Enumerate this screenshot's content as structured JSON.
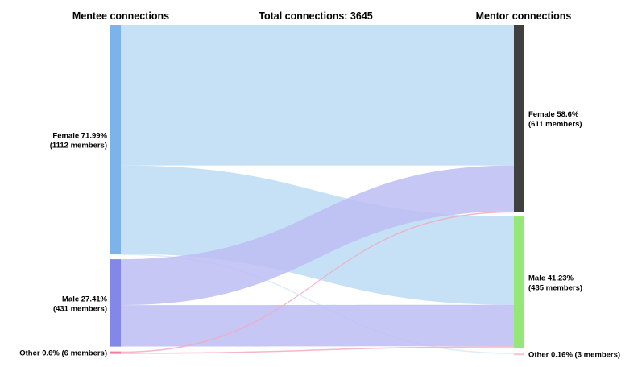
{
  "chart_data": {
    "type": "sankey",
    "title": "Total connections: 3645",
    "left_header": "Mentee connections",
    "right_header": "Mentor connections",
    "left_nodes": [
      {
        "id": "mentee-female",
        "line1": "Female 71.99%",
        "line2": "(1112 members)",
        "color": "#7eb3ea",
        "share": 71.99
      },
      {
        "id": "mentee-male",
        "line1": "Male 27.41%",
        "line2": "(431 members)",
        "color": "#8287e8",
        "share": 27.41
      },
      {
        "id": "mentee-other",
        "line1": "Other 0.6% (6 members)",
        "line2": "",
        "color": "#f07ca4",
        "share": 0.6
      }
    ],
    "right_nodes": [
      {
        "id": "mentor-female",
        "line1": "Female 58.6%",
        "line2": "(611 members)",
        "color": "#404040",
        "share": 58.6
      },
      {
        "id": "mentor-male",
        "line1": "Male 41.23%",
        "line2": "(435 members)",
        "color": "#95e878",
        "share": 41.23
      },
      {
        "id": "mentor-other",
        "line1": "Other 0.16% (3 members)",
        "line2": "",
        "color": "#f7c8d6",
        "share": 0.16
      }
    ],
    "links": [
      {
        "source": "mentee-female",
        "target": "mentor-female",
        "share": 44.1,
        "color": "#bcdaf4"
      },
      {
        "source": "mentee-female",
        "target": "mentor-male",
        "share": 27.7,
        "color": "#bcdaf4"
      },
      {
        "source": "mentee-female",
        "target": "mentor-other",
        "share": 0.2,
        "color": "#d6e8f8"
      },
      {
        "source": "mentee-male",
        "target": "mentor-female",
        "share": 14.4,
        "color": "#bcbdf3"
      },
      {
        "source": "mentee-male",
        "target": "mentor-male",
        "share": 13.0,
        "color": "#bcbdf3"
      },
      {
        "source": "mentee-other",
        "target": "mentor-female",
        "share": 0.25,
        "color": "#f2a9c2"
      },
      {
        "source": "mentee-other",
        "target": "mentor-male",
        "share": 0.25,
        "color": "#f2a9c2"
      }
    ]
  }
}
